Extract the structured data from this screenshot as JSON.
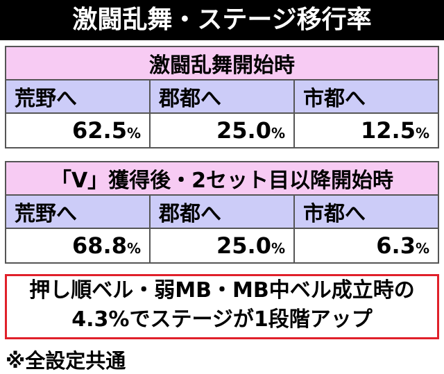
{
  "header": {
    "title": "激闘乱舞・ステージ移行率"
  },
  "tables": [
    {
      "title": "激闘乱舞開始時",
      "columns": [
        "荒野へ",
        "郡都へ",
        "市都へ"
      ],
      "cells": [
        {
          "text": "62.5",
          "unit": "%"
        },
        {
          "text": "25.0",
          "unit": "%"
        },
        {
          "text": "12.5",
          "unit": "%"
        }
      ]
    },
    {
      "title": "「V」獲得後・2セット目以降開始時",
      "columns": [
        "荒野へ",
        "郡都へ",
        "市都へ"
      ],
      "cells": [
        {
          "text": "68.8",
          "unit": "%"
        },
        {
          "text": "25.0",
          "unit": "%"
        },
        {
          "text": "6.3",
          "unit": "%"
        }
      ]
    }
  ],
  "note_box": {
    "lines": [
      "押し順ベル・弱MB・MB中ベル成立時の",
      "4.3%でステージが1段階アップ"
    ]
  },
  "footnote": "※全設定共通"
}
